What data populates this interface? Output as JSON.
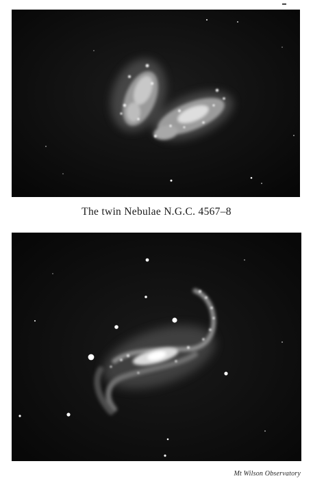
{
  "figure": {
    "caption": "The twin Nebulae N.G.C. 4567–8",
    "credit": "Mt Wilson Observatory"
  },
  "plates": [
    {
      "subject": "twin-nebulae-ngc-4567-8"
    },
    {
      "subject": "barred-spiral-nebula"
    }
  ]
}
